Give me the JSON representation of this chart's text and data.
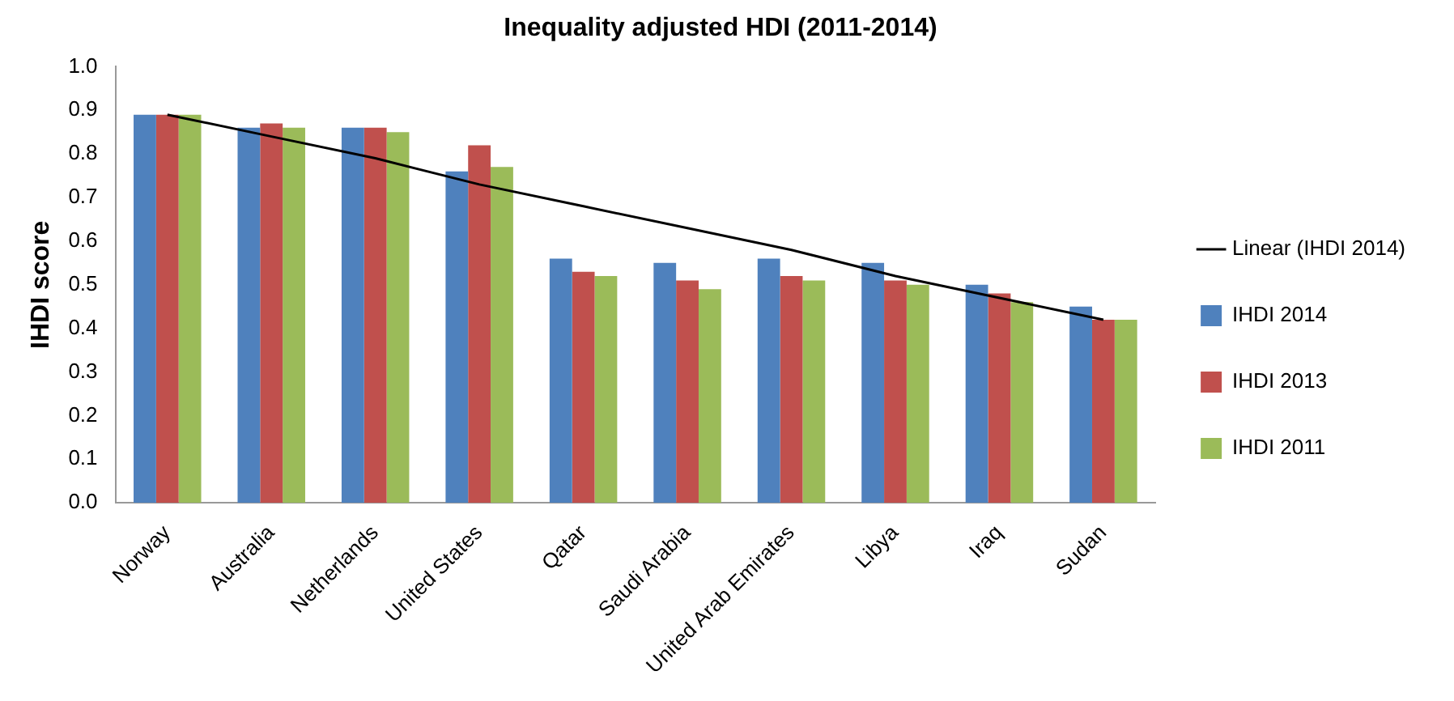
{
  "chart_data": {
    "type": "bar",
    "title": "Inequality adjusted HDI (2011-2014)",
    "ylabel": "IHDI score",
    "categories": [
      "Norway",
      "Australia",
      "Netherlands",
      "United States",
      "Qatar",
      "Saudi Arabia",
      "United Arab Emirates",
      "Libya",
      "Iraq",
      "Sudan"
    ],
    "series": [
      {
        "name": "IHDI 2014",
        "color": "#4f81bd",
        "values": [
          0.89,
          0.86,
          0.86,
          0.76,
          0.56,
          0.55,
          0.56,
          0.55,
          0.5,
          0.45
        ]
      },
      {
        "name": "IHDI 2013",
        "color": "#c0504d",
        "values": [
          0.89,
          0.87,
          0.86,
          0.82,
          0.53,
          0.51,
          0.52,
          0.51,
          0.48,
          0.42
        ]
      },
      {
        "name": "IHDI 2011",
        "color": "#9bbb59",
        "values": [
          0.89,
          0.86,
          0.85,
          0.77,
          0.52,
          0.49,
          0.51,
          0.5,
          0.46,
          0.42
        ]
      },
      {
        "name": "Linear (IHDI 2014)",
        "type": "line",
        "color": "#000000",
        "values": [
          0.89,
          0.84,
          0.79,
          0.73,
          0.68,
          0.63,
          0.58,
          0.52,
          0.47,
          0.42
        ]
      }
    ],
    "ylim": [
      0,
      1
    ],
    "yticks": [
      {
        "value": 0,
        "label": "0.0"
      },
      0.1,
      0.2,
      0.3,
      0.4,
      0.5,
      0.6,
      0.7,
      0.8,
      0.9,
      {
        "value": 1,
        "label": "1.0"
      }
    ],
    "grid": false,
    "legend": "right",
    "marker": "none"
  }
}
